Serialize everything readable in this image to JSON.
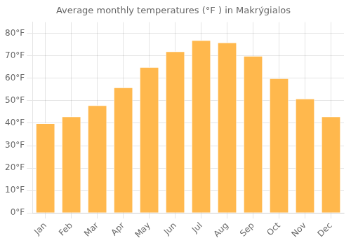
{
  "chart_data": {
    "type": "bar",
    "title": "Average monthly temperatures (°F ) in Makrýgialos",
    "categories": [
      "Jan",
      "Feb",
      "Mar",
      "Apr",
      "May",
      "Jun",
      "Jul",
      "Aug",
      "Sep",
      "Oct",
      "Nov",
      "Dec"
    ],
    "values": [
      40,
      43,
      48,
      56,
      65,
      72,
      77,
      76,
      70,
      60,
      51,
      43
    ],
    "color": "#FFB84D",
    "ylim": [
      0,
      85
    ],
    "yticks": [
      {
        "value": 0,
        "label": "0°F"
      },
      {
        "value": 10,
        "label": "10°F"
      },
      {
        "value": 20,
        "label": "20°F"
      },
      {
        "value": 30,
        "label": "30°F"
      },
      {
        "value": 40,
        "label": "40°F"
      },
      {
        "value": 50,
        "label": "50°F"
      },
      {
        "value": 60,
        "label": "60°F"
      },
      {
        "value": 70,
        "label": "70°F"
      },
      {
        "value": 80,
        "label": "80°F"
      }
    ],
    "grid": true
  }
}
